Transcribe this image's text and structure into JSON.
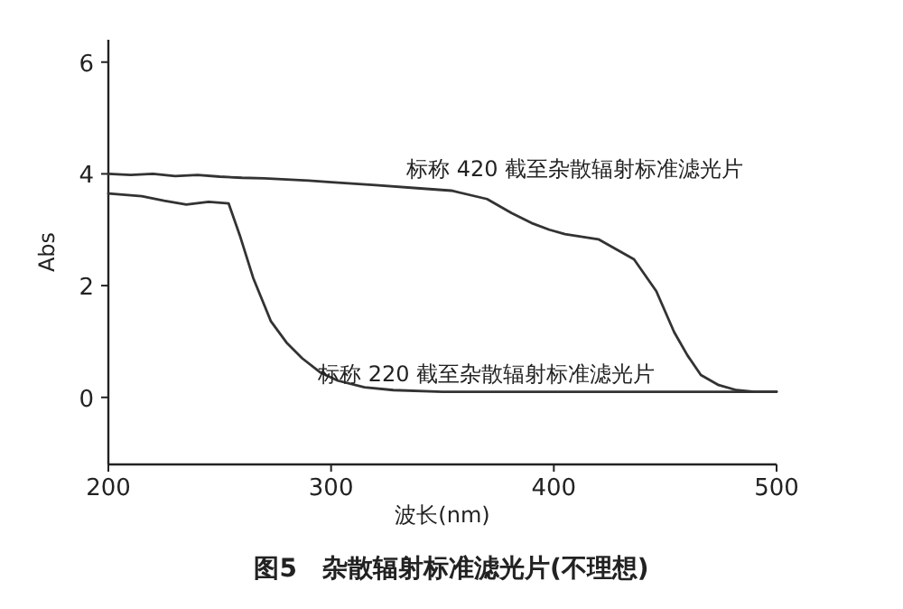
{
  "chart_data": {
    "type": "line",
    "title": "图5　杂散辐射标准滤光片(不理想)",
    "xlabel": "波长(nm)",
    "ylabel": "Abs",
    "xlim": [
      200,
      500
    ],
    "ylim": [
      -1.2,
      6.4
    ],
    "xticks": [
      200,
      300,
      400,
      500
    ],
    "yticks": [
      0,
      2,
      4,
      6
    ],
    "line_style": "solid",
    "series": [
      {
        "name": "标称 420 截至杂散辐射标准滤光片",
        "color": "#333333",
        "x": [
          200,
          210,
          220,
          230,
          240,
          250,
          260,
          270,
          280,
          290,
          300,
          320,
          340,
          354,
          370,
          381,
          390,
          398,
          405,
          420,
          436,
          446,
          454,
          460,
          466,
          474,
          482,
          490,
          500
        ],
        "values": [
          4.0,
          3.98,
          4.0,
          3.96,
          3.98,
          3.95,
          3.93,
          3.92,
          3.9,
          3.88,
          3.85,
          3.8,
          3.74,
          3.7,
          3.55,
          3.3,
          3.12,
          3.0,
          2.92,
          2.83,
          2.47,
          1.9,
          1.17,
          0.75,
          0.4,
          0.22,
          0.13,
          0.1,
          0.1
        ]
      },
      {
        "name": "标称 220 截至杂散辐射标准滤光片",
        "color": "#333333",
        "x": [
          200,
          215,
          225,
          235,
          245,
          254,
          259,
          265,
          273,
          280,
          287,
          295,
          303,
          315,
          328,
          350,
          400,
          450,
          500
        ],
        "values": [
          3.65,
          3.6,
          3.52,
          3.45,
          3.5,
          3.47,
          2.9,
          2.14,
          1.36,
          0.98,
          0.7,
          0.45,
          0.3,
          0.18,
          0.13,
          0.1,
          0.1,
          0.1,
          0.1
        ]
      }
    ]
  }
}
